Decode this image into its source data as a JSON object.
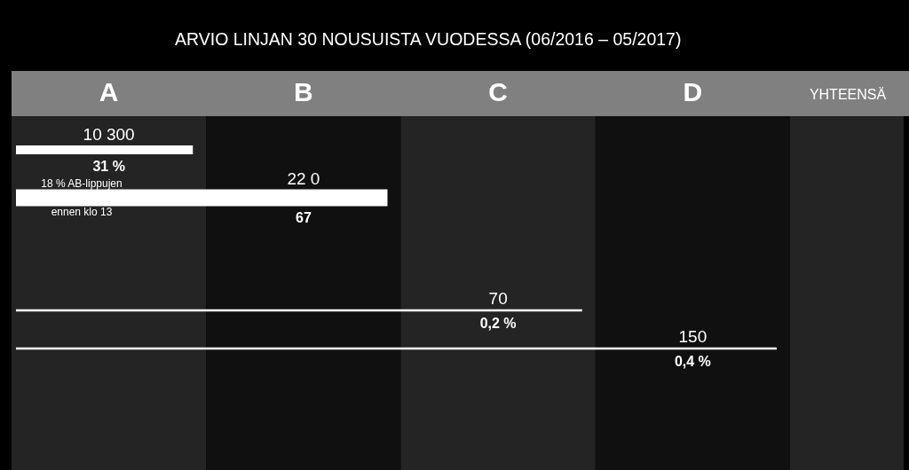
{
  "chart_data": {
    "type": "other",
    "title": "ARVIO LINJAN 30 NOUSUISTA VUODESSA (06/2016 – 05/2017)",
    "categories": [
      "A",
      "B",
      "C",
      "D",
      "YHTEENSÄ"
    ],
    "values": [
      31,
      67,
      0.2,
      0.4,
      null
    ],
    "value_labels": [
      "31 %",
      "67",
      "0,2 %",
      "0,4 %",
      null
    ],
    "annotations": [
      {
        "text": "10 300",
        "x": "A"
      },
      {
        "text": "22 0",
        "x": "B"
      },
      {
        "text": "70",
        "x": "C"
      },
      {
        "text": "150",
        "x": "D"
      },
      "18 % AB-lippujen",
      "ennen klo 13"
    ]
  }
}
